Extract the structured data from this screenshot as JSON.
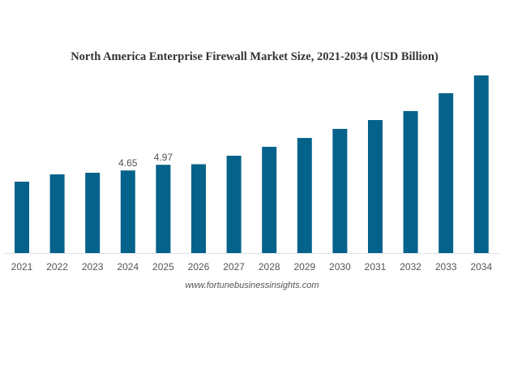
{
  "chart_data": {
    "type": "bar",
    "title": "North America Enterprise Firewall Market Size, 2021-2034 (USD Billion)",
    "xlabel": "",
    "ylabel": "",
    "categories": [
      "2021",
      "2022",
      "2023",
      "2024",
      "2025",
      "2026",
      "2027",
      "2028",
      "2029",
      "2030",
      "2031",
      "2032",
      "2033",
      "2034"
    ],
    "values": [
      4.02,
      4.43,
      4.52,
      4.65,
      4.97,
      5.0,
      5.48,
      5.98,
      6.48,
      6.99,
      7.49,
      7.99,
      9.0,
      10.0
    ],
    "data_labels": {
      "2024": "4.65",
      "2025": "4.97"
    },
    "ylim": [
      0,
      10
    ],
    "grid": false,
    "legend": "none",
    "bar_color": "#05628A",
    "source": "www.fortunebusinessinsights.com"
  }
}
